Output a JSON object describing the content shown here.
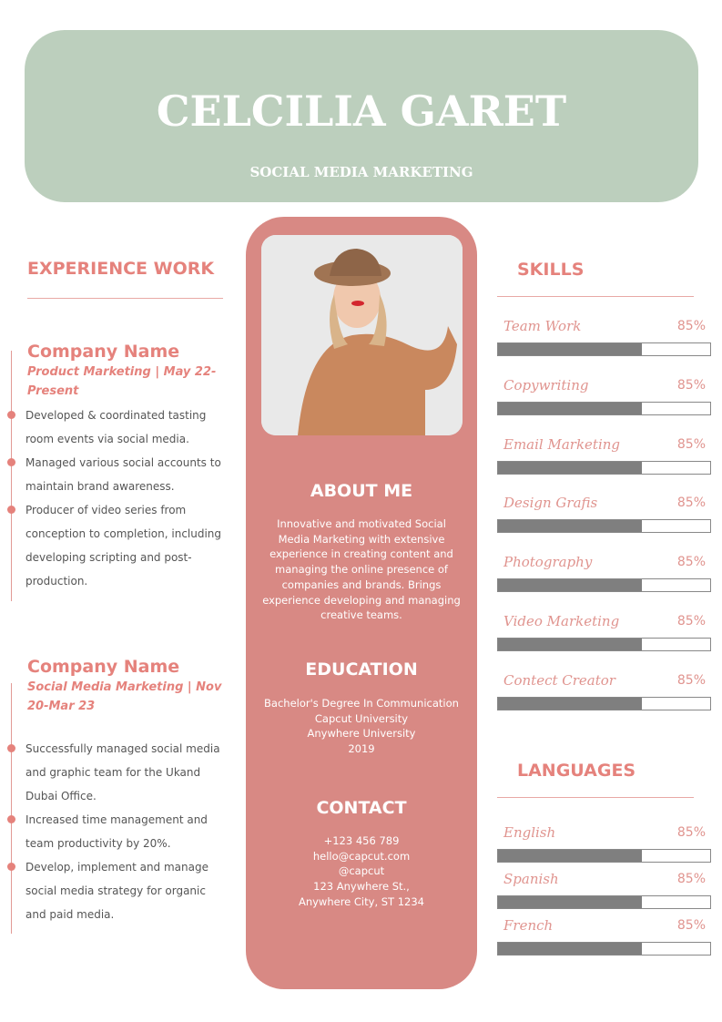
{
  "header": {
    "name": "CELCILIA GARET",
    "title": "SOCIAL MEDIA MARKETING"
  },
  "experience": {
    "heading": "EXPERIENCE WORK",
    "jobs": [
      {
        "company": "Company Name",
        "role": "Product Marketing | May 22-Present",
        "bullets": [
          "Developed & coordinated tasting room events via social media.",
          "Managed various social accounts to maintain brand awareness.",
          "Producer of video series from conception to completion, including developing scripting and post-production."
        ]
      },
      {
        "company": "Company Name",
        "role": "Social Media Marketing | Nov 20-Mar 23",
        "bullets": [
          "Successfully managed social media and graphic team for the Ukand Dubai Office.",
          "Increased time management and team productivity by 20%.",
          "Develop, implement and manage social media strategy for organic and paid media."
        ]
      }
    ]
  },
  "about": {
    "heading": "ABOUT ME",
    "text": "Innovative and motivated Social Media Marketing with extensive experience in creating content and managing the online presence of companies and brands. Brings experience developing and managing creative teams."
  },
  "education": {
    "heading": "EDUCATION",
    "lines": [
      "Bachelor's Degree In Communication",
      "Capcut University",
      "Anywhere University",
      "2019"
    ]
  },
  "contact": {
    "heading": "CONTACT",
    "lines": [
      "+123  456 789",
      "hello@capcut.com",
      "@capcut",
      "123 Anywhere St.,",
      "Anywhere City, ST 1234"
    ]
  },
  "skills": {
    "heading": "SKILLS",
    "items": [
      {
        "name": "Team Work",
        "level": "85%"
      },
      {
        "name": "Copywriting",
        "level": "85%"
      },
      {
        "name": "Email Marketing",
        "level": "85%"
      },
      {
        "name": "Design Grafis",
        "level": "85%"
      },
      {
        "name": "Photography",
        "level": "85%"
      },
      {
        "name": "Video Marketing",
        "level": "85%"
      },
      {
        "name": "Contect Creator",
        "level": "85%"
      }
    ]
  },
  "languages": {
    "heading": "LANGUAGES",
    "items": [
      {
        "name": "English",
        "level": "85%"
      },
      {
        "name": "Spanish",
        "level": "85%"
      },
      {
        "name": "French",
        "level": "85%"
      }
    ]
  }
}
